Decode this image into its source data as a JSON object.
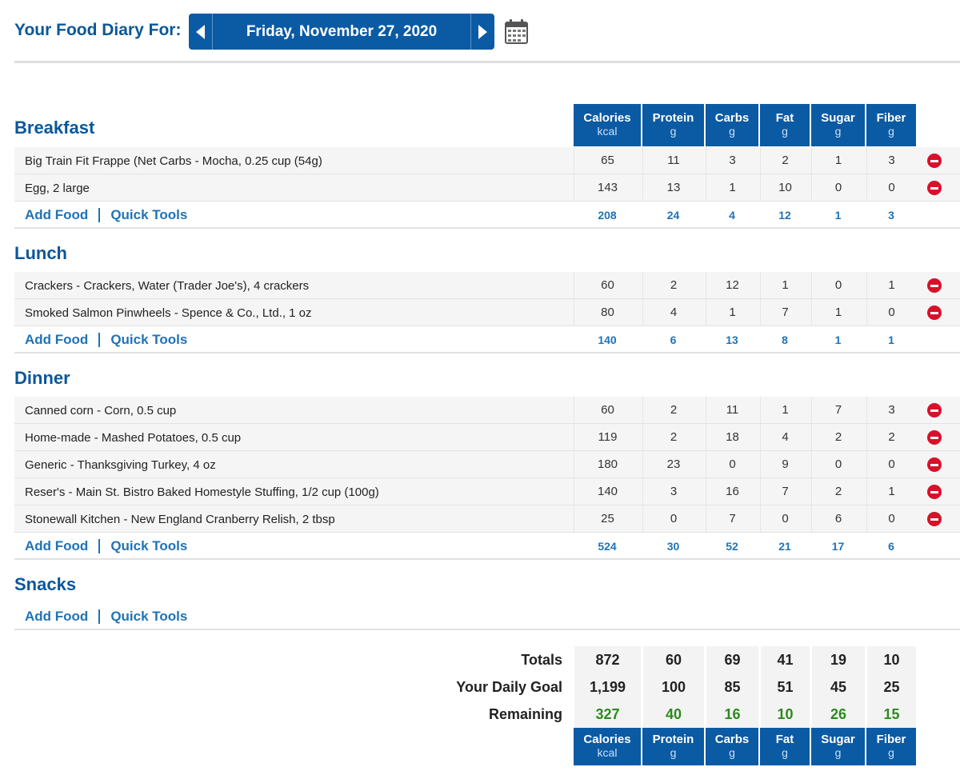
{
  "header": {
    "title": "Your Food Diary For:",
    "date": "Friday, November 27, 2020",
    "prev_icon": "chevron-left-icon",
    "next_icon": "chevron-right-icon",
    "calendar_icon": "calendar-icon"
  },
  "columns": [
    {
      "name": "Calories",
      "unit": "kcal"
    },
    {
      "name": "Protein",
      "unit": "g"
    },
    {
      "name": "Carbs",
      "unit": "g"
    },
    {
      "name": "Fat",
      "unit": "g"
    },
    {
      "name": "Sugar",
      "unit": "g"
    },
    {
      "name": "Fiber",
      "unit": "g"
    }
  ],
  "links": {
    "add_food": "Add Food",
    "quick_tools": "Quick Tools"
  },
  "meals": {
    "breakfast": {
      "title": "Breakfast",
      "items": [
        {
          "name": "Big Train Fit Frappe (Net Carbs - Mocha, 0.25 cup (54g)",
          "values": [
            "65",
            "11",
            "3",
            "2",
            "1",
            "3"
          ]
        },
        {
          "name": "Egg, 2 large",
          "values": [
            "143",
            "13",
            "1",
            "10",
            "0",
            "0"
          ]
        }
      ],
      "totals": [
        "208",
        "24",
        "4",
        "12",
        "1",
        "3"
      ]
    },
    "lunch": {
      "title": "Lunch",
      "items": [
        {
          "name": "Crackers - Crackers, Water (Trader Joe's), 4 crackers",
          "values": [
            "60",
            "2",
            "12",
            "1",
            "0",
            "1"
          ]
        },
        {
          "name": "Smoked Salmon Pinwheels - Spence & Co., Ltd., 1 oz",
          "values": [
            "80",
            "4",
            "1",
            "7",
            "1",
            "0"
          ]
        }
      ],
      "totals": [
        "140",
        "6",
        "13",
        "8",
        "1",
        "1"
      ]
    },
    "dinner": {
      "title": "Dinner",
      "items": [
        {
          "name": "Canned corn - Corn, 0.5 cup",
          "values": [
            "60",
            "2",
            "11",
            "1",
            "7",
            "3"
          ]
        },
        {
          "name": "Home-made - Mashed Potatoes, 0.5 cup",
          "values": [
            "119",
            "2",
            "18",
            "4",
            "2",
            "2"
          ]
        },
        {
          "name": "Generic - Thanksgiving Turkey, 4 oz",
          "values": [
            "180",
            "23",
            "0",
            "9",
            "0",
            "0"
          ]
        },
        {
          "name": "Reser's - Main St. Bistro Baked Homestyle Stuffing, 1/2 cup (100g)",
          "values": [
            "140",
            "3",
            "16",
            "7",
            "2",
            "1"
          ]
        },
        {
          "name": "Stonewall Kitchen - New England Cranberry Relish, 2 tbsp",
          "values": [
            "25",
            "0",
            "7",
            "0",
            "6",
            "0"
          ]
        }
      ],
      "totals": [
        "524",
        "30",
        "52",
        "21",
        "17",
        "6"
      ]
    },
    "snacks": {
      "title": "Snacks",
      "items": [],
      "totals": []
    }
  },
  "summary": {
    "totals": {
      "label": "Totals",
      "values": [
        "872",
        "60",
        "69",
        "41",
        "19",
        "10"
      ]
    },
    "goal": {
      "label": "Your Daily Goal",
      "values": [
        "1,199",
        "100",
        "85",
        "51",
        "45",
        "25"
      ]
    },
    "remaining": {
      "label": "Remaining",
      "values": [
        "327",
        "40",
        "16",
        "10",
        "26",
        "15"
      ]
    }
  },
  "colors": {
    "brand_blue": "#0b5aa4",
    "link_blue": "#1f73b7",
    "remaining_green": "#2c8a1d",
    "delete_red": "#d9102a"
  }
}
